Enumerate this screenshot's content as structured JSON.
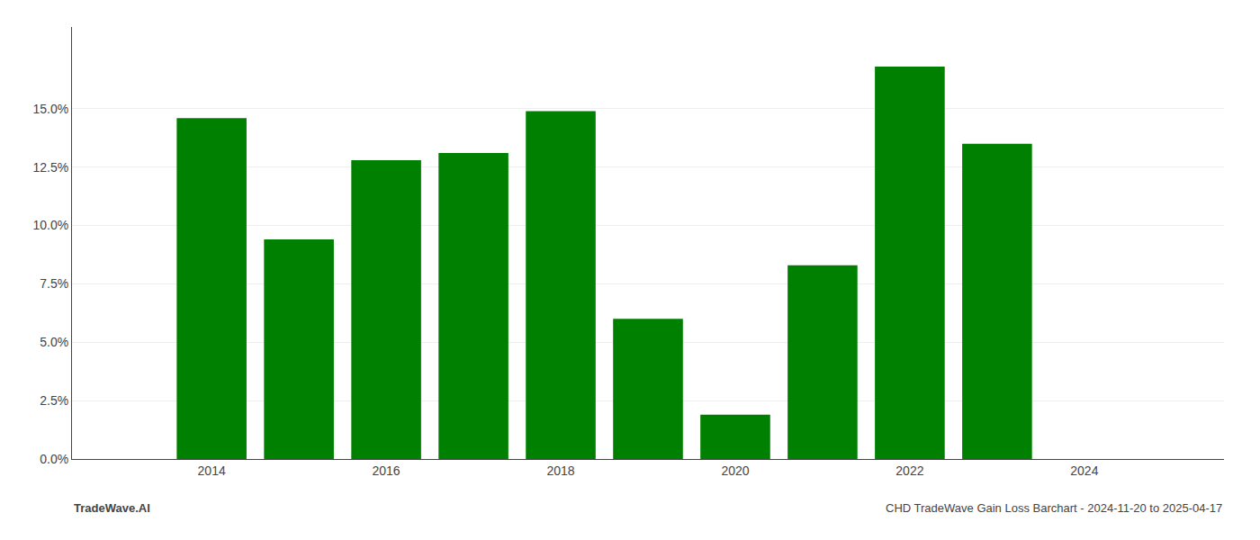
{
  "chart_data": {
    "type": "bar",
    "x": [
      2014,
      2015,
      2016,
      2017,
      2018,
      2019,
      2020,
      2021,
      2022,
      2023
    ],
    "values": [
      0.146,
      0.094,
      0.128,
      0.131,
      0.149,
      0.06,
      0.019,
      0.083,
      0.168,
      0.135
    ],
    "color": "#008000",
    "xlim": [
      2012.4,
      2025.6
    ],
    "xticks": [
      2014,
      2016,
      2018,
      2020,
      2022,
      2024
    ],
    "ylim": [
      0,
      0.185
    ],
    "yticks": [
      {
        "value": 0.0,
        "label": "0.0%"
      },
      {
        "value": 0.025,
        "label": "2.5%"
      },
      {
        "value": 0.05,
        "label": "5.0%"
      },
      {
        "value": 0.075,
        "label": "7.5%"
      },
      {
        "value": 0.1,
        "label": "10.0%"
      },
      {
        "value": 0.125,
        "label": "12.5%"
      },
      {
        "value": 0.15,
        "label": "15.0%"
      }
    ],
    "grid": true,
    "annotations": [
      "TradeWave.AI",
      "CHD TradeWave Gain Loss Barchart - 2024-11-20 to 2025-04-17"
    ]
  }
}
